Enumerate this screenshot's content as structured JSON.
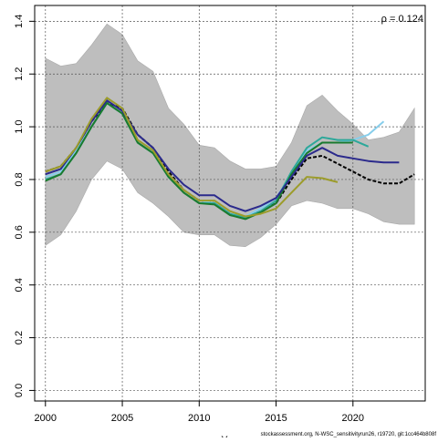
{
  "colors": {
    "band": "#bebebe",
    "band_edge": "#a9a9a9",
    "grid": "#555555",
    "axis": "#000000"
  },
  "annotation": "ρ = 0.124",
  "footer": "stockassessment.org, N-WSC_sensitivityrun26, r19720, git:1cc464b808f",
  "xlabel_fragment": "Y",
  "chart_data": {
    "type": "line",
    "title": "",
    "xlabel": "",
    "ylabel": "",
    "xlim": [
      1999.3,
      2024.7
    ],
    "ylim": [
      -0.04,
      1.46
    ],
    "xticks": [
      2000,
      2005,
      2010,
      2015,
      2020
    ],
    "yticks": [
      0.0,
      0.2,
      0.4,
      0.6,
      0.8,
      1.0,
      1.2,
      1.4
    ],
    "ytick_labels": [
      "0.0",
      "0.2",
      "0.4",
      "0.6",
      "0.8",
      "1.0",
      "1.2",
      "1.4"
    ],
    "grid": true,
    "legend": "none",
    "confidence_band": {
      "x": [
        2000,
        2001,
        2002,
        2003,
        2004,
        2005,
        2006,
        2007,
        2008,
        2009,
        2010,
        2011,
        2012,
        2013,
        2014,
        2015,
        2016,
        2017,
        2018,
        2019,
        2020,
        2021,
        2022,
        2023,
        2024
      ],
      "lower": [
        0.55,
        0.59,
        0.68,
        0.8,
        0.87,
        0.84,
        0.75,
        0.71,
        0.66,
        0.6,
        0.59,
        0.59,
        0.55,
        0.545,
        0.58,
        0.63,
        0.7,
        0.72,
        0.71,
        0.69,
        0.69,
        0.67,
        0.64,
        0.63,
        0.63
      ],
      "upper": [
        1.26,
        1.23,
        1.24,
        1.31,
        1.39,
        1.35,
        1.25,
        1.21,
        1.07,
        1.01,
        0.93,
        0.92,
        0.87,
        0.84,
        0.84,
        0.85,
        0.94,
        1.08,
        1.12,
        1.06,
        1.01,
        0.95,
        0.96,
        0.98,
        1.07
      ]
    },
    "series": [
      {
        "color": "#000000",
        "dashed": true,
        "width": 2,
        "x": [
          2000,
          2001,
          2002,
          2003,
          2004,
          2005,
          2006,
          2007,
          2008,
          2009,
          2010,
          2011,
          2012,
          2013,
          2014,
          2015,
          2016,
          2017,
          2018,
          2019,
          2020,
          2021,
          2022,
          2023,
          2024
        ],
        "values": [
          0.83,
          0.85,
          0.92,
          1.02,
          1.09,
          1.07,
          0.97,
          0.92,
          0.83,
          0.76,
          0.72,
          0.71,
          0.67,
          0.655,
          0.68,
          0.71,
          0.8,
          0.88,
          0.89,
          0.86,
          0.83,
          0.8,
          0.785,
          0.785,
          0.82
        ]
      },
      {
        "color": "#87ceeb",
        "dashed": false,
        "width": 2,
        "x": [
          2000,
          2001,
          2002,
          2003,
          2004,
          2005,
          2006,
          2007,
          2008,
          2009,
          2010,
          2011,
          2012,
          2013,
          2014,
          2015,
          2016,
          2017,
          2018,
          2019,
          2020,
          2021,
          2022
        ],
        "values": [
          0.81,
          0.83,
          0.91,
          1.0,
          1.09,
          1.05,
          0.95,
          0.91,
          0.82,
          0.76,
          0.72,
          0.71,
          0.67,
          0.66,
          0.69,
          0.73,
          0.82,
          0.91,
          0.94,
          0.94,
          0.95,
          0.97,
          1.02
        ]
      },
      {
        "color": "#2ca89a",
        "dashed": false,
        "width": 2,
        "x": [
          2000,
          2001,
          2002,
          2003,
          2004,
          2005,
          2006,
          2007,
          2008,
          2009,
          2010,
          2011,
          2012,
          2013,
          2014,
          2015,
          2016,
          2017,
          2018,
          2019,
          2020,
          2021
        ],
        "values": [
          0.8,
          0.82,
          0.9,
          1.0,
          1.09,
          1.05,
          0.94,
          0.9,
          0.81,
          0.75,
          0.71,
          0.71,
          0.67,
          0.655,
          0.68,
          0.72,
          0.83,
          0.92,
          0.96,
          0.95,
          0.95,
          0.925
        ]
      },
      {
        "color": "#1a7a2e",
        "dashed": false,
        "width": 2,
        "x": [
          2000,
          2001,
          2002,
          2003,
          2004,
          2005,
          2006,
          2007,
          2008,
          2009,
          2010,
          2011,
          2012,
          2013,
          2014,
          2015,
          2016,
          2017,
          2018,
          2019,
          2020
        ],
        "values": [
          0.795,
          0.82,
          0.9,
          1.0,
          1.09,
          1.05,
          0.94,
          0.9,
          0.81,
          0.75,
          0.71,
          0.705,
          0.665,
          0.65,
          0.675,
          0.71,
          0.82,
          0.9,
          0.94,
          0.94,
          0.94
        ]
      },
      {
        "color": "#2b2a8c",
        "dashed": false,
        "width": 2,
        "x": [
          2000,
          2001,
          2002,
          2003,
          2004,
          2005,
          2006,
          2007,
          2008,
          2009,
          2010,
          2011,
          2012,
          2013,
          2014,
          2015,
          2016,
          2017,
          2018,
          2019,
          2020,
          2021,
          2022,
          2023
        ],
        "values": [
          0.82,
          0.84,
          0.92,
          1.02,
          1.1,
          1.06,
          0.97,
          0.92,
          0.84,
          0.78,
          0.74,
          0.74,
          0.7,
          0.68,
          0.7,
          0.73,
          0.81,
          0.89,
          0.92,
          0.89,
          0.88,
          0.87,
          0.865,
          0.865
        ]
      },
      {
        "color": "#9c9c2a",
        "dashed": false,
        "width": 2,
        "x": [
          2000,
          2001,
          2002,
          2003,
          2004,
          2005,
          2006,
          2007,
          2008,
          2009,
          2010,
          2011,
          2012,
          2013,
          2014,
          2015,
          2016,
          2017,
          2018,
          2019
        ],
        "values": [
          0.83,
          0.85,
          0.92,
          1.03,
          1.11,
          1.07,
          0.95,
          0.91,
          0.82,
          0.76,
          0.72,
          0.72,
          0.68,
          0.66,
          0.67,
          0.69,
          0.75,
          0.81,
          0.805,
          0.79
        ]
      }
    ]
  }
}
